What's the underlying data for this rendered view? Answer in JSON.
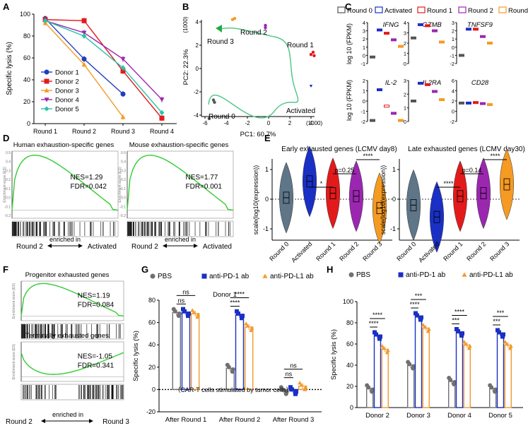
{
  "panels": {
    "A": {
      "letter": "A"
    },
    "B": {
      "letter": "B"
    },
    "C": {
      "letter": "C"
    },
    "D": {
      "letter": "D"
    },
    "E": {
      "letter": "E"
    },
    "F": {
      "letter": "F"
    },
    "G": {
      "letter": "G"
    },
    "H": {
      "letter": "H"
    }
  },
  "colors": {
    "donor1": "#1f3fbf",
    "donor2": "#e31a1c",
    "donor3": "#f59a23",
    "donor4": "#9b27b0",
    "donor5": "#27c4a8",
    "pbs": "#707070",
    "pd1": "#1a2fc4",
    "pdl1": "#f39a2c",
    "gsea": "#33cc33",
    "round0": "#555555",
    "activated": "#1a2fc4",
    "round1": "#e31a1c",
    "round2": "#9b27b0",
    "round3": "#f59a23"
  },
  "chart_data": [
    {
      "panel": "A",
      "type": "line",
      "categories": [
        "Round 1",
        "Round 2",
        "Round 3",
        "Round 4"
      ],
      "ylabel": "Specific lysis (%)",
      "ylim": [
        0,
        100
      ],
      "yticks": [
        0,
        20,
        40,
        60,
        80,
        100
      ],
      "series": [
        {
          "name": "Donor 1",
          "values": [
            96,
            59,
            27,
            null
          ]
        },
        {
          "name": "Donor 2",
          "values": [
            95,
            94,
            48,
            5
          ]
        },
        {
          "name": "Donor 3",
          "values": [
            92,
            54,
            6,
            null
          ]
        },
        {
          "name": "Donor 4",
          "values": [
            94,
            83,
            59,
            22
          ]
        },
        {
          "name": "Donor 5",
          "values": [
            94,
            80,
            51,
            10
          ]
        }
      ]
    },
    {
      "panel": "B",
      "type": "scatter",
      "xlabel": "PC1: 60.7%",
      "ylabel": "PC2: 22.3%",
      "xunit": "(1000)",
      "yunit": "(1000)",
      "xticks": [
        -6,
        -4,
        -2,
        0,
        2,
        4
      ],
      "yticks": [
        -4,
        -2,
        0,
        2,
        4
      ],
      "labels": [
        "Round 0",
        "Activated",
        "Round 1",
        "Round 2",
        "Round 3"
      ],
      "groups": [
        {
          "name": "Round 0",
          "points": [
            [
              -5.2,
              -2.7
            ],
            [
              -5.1,
              -2.9
            ],
            [
              -5.6,
              -4.3
            ]
          ]
        },
        {
          "name": "Activated",
          "points": [
            [
              4.0,
              -1.5
            ]
          ]
        },
        {
          "name": "Round 1",
          "points": [
            [
              4.2,
              1.4
            ],
            [
              4.3,
              1.1
            ],
            [
              4.0,
              1.2
            ]
          ]
        },
        {
          "name": "Round 2",
          "points": [
            [
              -0.3,
              3.5
            ],
            [
              -0.3,
              3.7
            ]
          ]
        },
        {
          "name": "Round 3",
          "points": [
            [
              -3.4,
              4.2
            ],
            [
              -3.2,
              4.3
            ]
          ]
        }
      ]
    },
    {
      "panel": "C",
      "type": "box",
      "legend": [
        "Round 0",
        "Activated",
        "Round 1",
        "Round 2",
        "Round 3"
      ],
      "ylabel": "log 10 (FPKM)",
      "genes": [
        {
          "name": "IFNG",
          "yticks": [
            -1,
            0,
            1,
            2,
            3,
            4
          ],
          "values": [
            -0.2,
            3.1,
            2.7,
            1.9,
            1.1
          ]
        },
        {
          "name": "GZMB",
          "yticks": [
            0,
            1,
            2,
            3,
            4
          ],
          "values": [
            2.5,
            3.8,
            3.7,
            3.2,
            2.1
          ]
        },
        {
          "name": "TNFSF9",
          "yticks": [
            -2,
            -1,
            0,
            1,
            2,
            3
          ],
          "values": [
            -1.0,
            2.2,
            2.2,
            1.3,
            0.5
          ]
        },
        {
          "name": "IL-2",
          "yticks": [
            -2,
            -1,
            0,
            1,
            2
          ],
          "values": [
            -1.9,
            1.1,
            -0.5,
            -1.2,
            -1.9
          ]
        },
        {
          "name": "IL2RA",
          "yticks": [
            0,
            1,
            2,
            3
          ],
          "values": [
            1.5,
            2.8,
            2.7,
            2.2,
            1.6
          ]
        },
        {
          "name": "CD28",
          "yticks": [
            -2,
            0,
            2,
            4,
            6
          ],
          "values": [
            1.6,
            1.6,
            1.7,
            1.5,
            1.3
          ]
        }
      ]
    },
    {
      "panel": "D",
      "type": "gsea",
      "plots": [
        {
          "title": "Human exhaustion-specific genes",
          "nes": "NES=1.29",
          "fdr": "FDR=0.042"
        },
        {
          "title": "Mouse exhaustion-specific genes",
          "nes": "NES=1.77",
          "fdr": "FDR=0.001"
        }
      ],
      "ylabel": "Enrichment score (ES)",
      "yticks": [
        "0.5",
        "0.4",
        "0.3",
        "0.2",
        "0.1",
        "0.0",
        "-0.1",
        "-0.2"
      ],
      "left": "Round 2",
      "right": "Activated",
      "mid": "enriched in"
    },
    {
      "panel": "E",
      "type": "violin",
      "plots": [
        {
          "title": "Early exhausted genes (LCMV day8)",
          "medians": [
            0.05,
            0.6,
            0.2,
            0.1,
            -0.3
          ],
          "pvals": [
            {
              "label": "*",
              "from": 1,
              "to": 2
            },
            {
              "label": "p=0.25",
              "from": 2,
              "to": 3
            },
            {
              "label": "****",
              "from": 3,
              "to": 4
            }
          ]
        },
        {
          "title": "Late exhausted genes (LCMV day30)",
          "medians": [
            -0.2,
            -0.6,
            0.1,
            0.2,
            0.5
          ],
          "pvals": [
            {
              "label": "****",
              "from": 1,
              "to": 2
            },
            {
              "label": "p=0.14",
              "from": 2,
              "to": 3
            },
            {
              "label": "****",
              "from": 3,
              "to": 4
            }
          ]
        }
      ],
      "categories": [
        "Round 0",
        "Activated",
        "Round 1",
        "Round 2",
        "Round 3"
      ],
      "ylabel": "scale(log10(expression))",
      "yticks": [
        -1,
        0,
        1
      ]
    },
    {
      "panel": "F",
      "type": "gsea",
      "plots": [
        {
          "title": "Progenitor exhausted genes",
          "nes": "NES=1.19",
          "fdr": "FDR=0.084"
        },
        {
          "title": "Terminally exhausted genes",
          "nes": "NES=-1.05",
          "fdr": "FDR=0.341"
        }
      ],
      "left": "Round 2",
      "right": "Round 3",
      "mid": "enriched in"
    },
    {
      "panel": "G",
      "type": "bar",
      "title": "Donor 1",
      "legend": [
        "PBS",
        "anti-PD-1 ab",
        "anti-PD-L1 ab"
      ],
      "categories": [
        "After Round 1",
        "After Round 2",
        "After Round 3"
      ],
      "ylabel": "Specific lysis (%)",
      "ylim": [
        -20,
        80
      ],
      "yticks": [
        -20,
        0,
        20,
        40,
        60,
        80
      ],
      "series": [
        {
          "name": "PBS",
          "values": [
            69,
            19,
            -1
          ]
        },
        {
          "name": "anti-PD-1 ab",
          "values": [
            69,
            67,
            -1
          ]
        },
        {
          "name": "anti-PD-L1 ab",
          "values": [
            68,
            56,
            3
          ]
        }
      ],
      "sig": [
        {
          "cat": 0,
          "label": "ns",
          "span": "pbs-pd1"
        },
        {
          "cat": 0,
          "label": "ns",
          "span": "pbs-pdl1"
        },
        {
          "cat": 1,
          "label": "****",
          "span": "pbs-pd1"
        },
        {
          "cat": 1,
          "label": "****",
          "span": "pbs-pdl1"
        },
        {
          "cat": 2,
          "label": "ns",
          "span": "pbs-pd1"
        },
        {
          "cat": 2,
          "label": "ns",
          "span": "pbs-pdl1"
        }
      ],
      "note": "（CAR-T cells stimulated by tumor cells）"
    },
    {
      "panel": "H",
      "type": "bar",
      "legend": [
        "PBS",
        "anti-PD-1 ab",
        "anti-PD-L1 ab"
      ],
      "categories": [
        "Donor 2",
        "Donor 3",
        "Donor 4",
        "Donor 5"
      ],
      "ylabel": "Specific lysis (%)",
      "ylim": [
        0,
        100
      ],
      "yticks": [
        0,
        20,
        40,
        60,
        80,
        100
      ],
      "series": [
        {
          "name": "PBS",
          "values": [
            18,
            40,
            25,
            18
          ]
        },
        {
          "name": "anti-PD-1 ab",
          "values": [
            68,
            86,
            71,
            70
          ]
        },
        {
          "name": "anti-PD-L1 ab",
          "values": [
            55,
            75,
            59,
            59
          ]
        }
      ],
      "sig": [
        {
          "cat": 0,
          "label": "****",
          "span": "pbs-pd1"
        },
        {
          "cat": 0,
          "label": "****",
          "span": "pbs-pdl1"
        },
        {
          "cat": 1,
          "label": "****",
          "span": "pbs-pd1"
        },
        {
          "cat": 1,
          "label": "***",
          "span": "pbs-pdl1"
        },
        {
          "cat": 2,
          "label": "***",
          "span": "pbs-pd1"
        },
        {
          "cat": 2,
          "label": "****",
          "span": "pbs-pdl1"
        },
        {
          "cat": 3,
          "label": "***",
          "span": "pbs-pd1"
        },
        {
          "cat": 3,
          "label": "***",
          "span": "pbs-pdl1"
        }
      ]
    }
  ]
}
